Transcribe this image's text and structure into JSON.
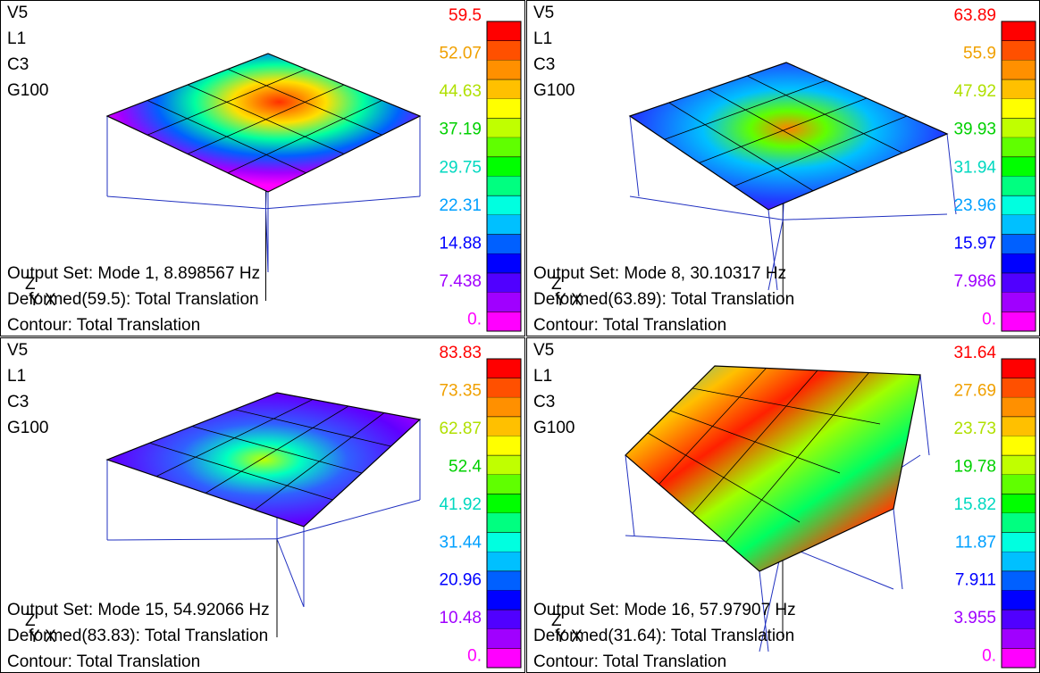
{
  "panels": [
    {
      "header": [
        "V5",
        "L1",
        "C3",
        "G100"
      ],
      "legend": [
        "59.5",
        "52.07",
        "44.63",
        "37.19",
        "29.75",
        "22.31",
        "14.88",
        "7.438",
        "0."
      ],
      "output_set": "Output Set: Mode 1, 8.898567 Hz",
      "deformed": "Deformed(59.5): Total Translation",
      "contour": "Contour: Total Translation",
      "triad": [
        "Z",
        "Y",
        "X"
      ]
    },
    {
      "header": [
        "V5",
        "L1",
        "C3",
        "G100"
      ],
      "legend": [
        "63.89",
        "55.9",
        "47.92",
        "39.93",
        "31.94",
        "23.96",
        "15.97",
        "7.986",
        "0."
      ],
      "output_set": "Output Set: Mode 8, 30.10317 Hz",
      "deformed": "Deformed(63.89): Total Translation",
      "contour": "Contour: Total Translation",
      "triad": [
        "Z",
        "Y",
        "X"
      ]
    },
    {
      "header": [
        "V5",
        "L1",
        "C3",
        "G100"
      ],
      "legend": [
        "83.83",
        "73.35",
        "62.87",
        "52.4",
        "41.92",
        "31.44",
        "20.96",
        "10.48",
        "0."
      ],
      "output_set": "Output Set: Mode 15, 54.92066 Hz",
      "deformed": "Deformed(83.83): Total Translation",
      "contour": "Contour: Total Translation",
      "triad": [
        "Z",
        "Y",
        "X"
      ]
    },
    {
      "header": [
        "V5",
        "L1",
        "C3",
        "G100"
      ],
      "legend": [
        "31.64",
        "27.69",
        "23.73",
        "19.78",
        "15.82",
        "11.87",
        "7.911",
        "3.955",
        "0."
      ],
      "output_set": "Output Set: Mode 16, 57.97907 Hz",
      "deformed": "Deformed(31.64): Total Translation",
      "contour": "Contour: Total Translation",
      "triad": [
        "Z",
        "Y",
        "X"
      ]
    }
  ]
}
